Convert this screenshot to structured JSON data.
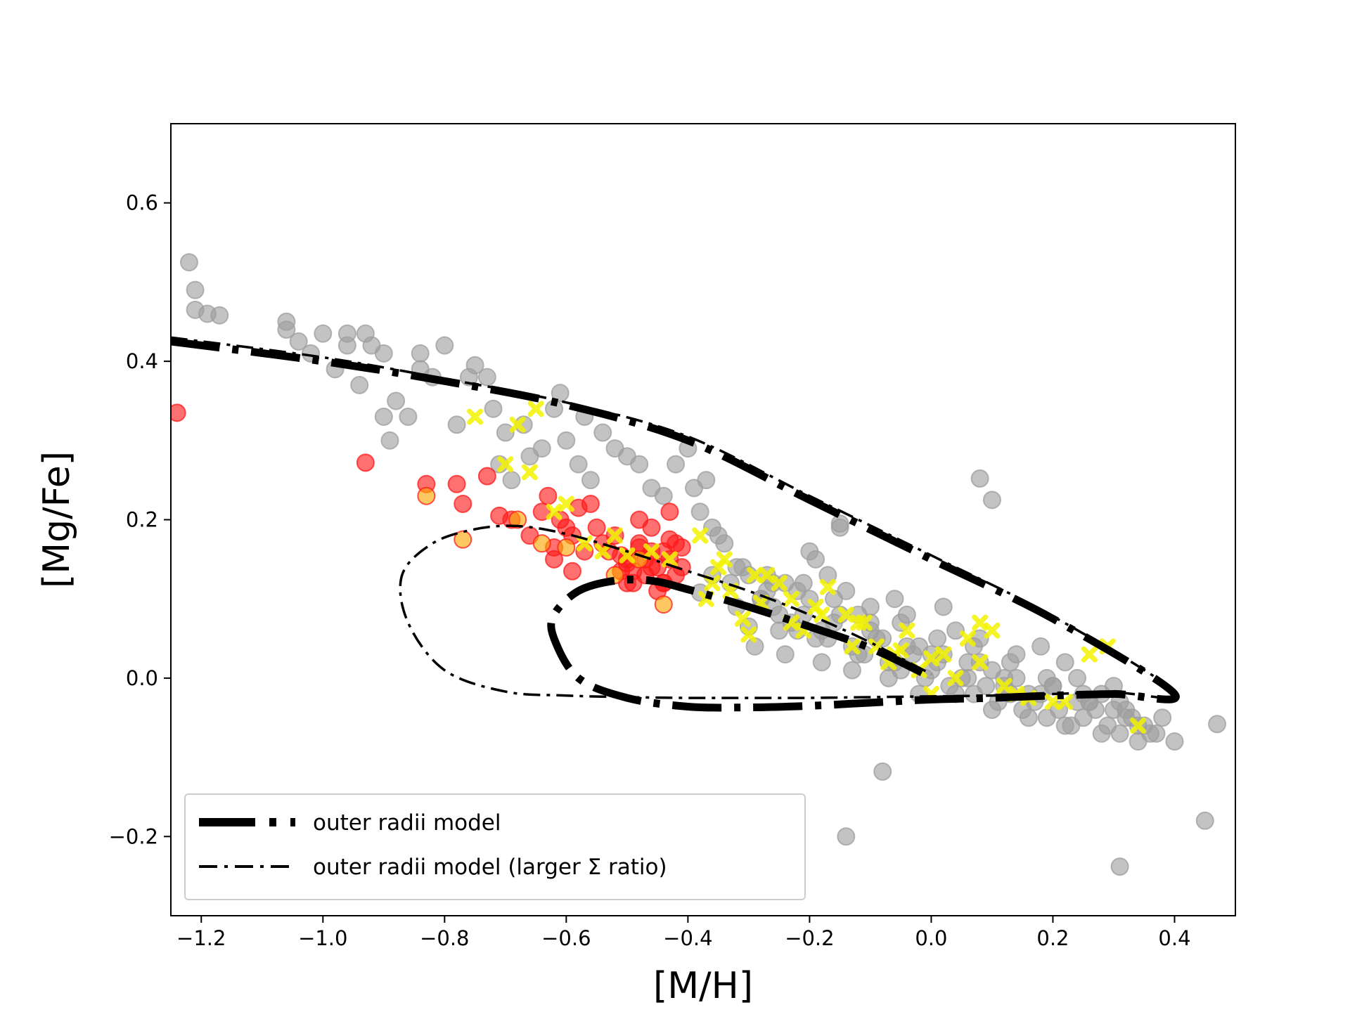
{
  "chart_data": {
    "type": "scatter",
    "xlabel": "[M/H]",
    "ylabel": "[Mg/Fe]",
    "xlim": [
      -1.25,
      0.5
    ],
    "ylim": [
      -0.3,
      0.7
    ],
    "xticks": [
      -1.2,
      -1.0,
      -0.8,
      -0.6,
      -0.4,
      -0.2,
      0.0,
      0.2,
      0.4
    ],
    "xtick_labels": [
      "−1.2",
      "−1.0",
      "−0.8",
      "−0.6",
      "−0.4",
      "−0.2",
      "0.0",
      "0.2",
      "0.4"
    ],
    "yticks": [
      -0.2,
      0.0,
      0.2,
      0.4,
      0.6
    ],
    "ytick_labels": [
      "−0.2",
      "0.0",
      "0.2",
      "0.4",
      "0.6"
    ],
    "legend_position": "lower-left",
    "colors": {
      "gray": "#9e9e9e",
      "red": "#ff1a1a",
      "orange": "#ffa500",
      "yellow": "#f2f200",
      "line": "#000000"
    },
    "series": [
      {
        "name": "galaxies (gray)",
        "kind": "scatter",
        "marker": "circle",
        "x": [
          -1.22,
          -1.21,
          -1.21,
          -1.19,
          -1.17,
          -1.06,
          -1.06,
          -1.04,
          -1.02,
          -1.0,
          -0.98,
          -0.96,
          -0.96,
          -0.94,
          -0.93,
          -0.92,
          -0.9,
          -0.9,
          -0.89,
          -0.88,
          -0.86,
          -0.84,
          -0.84,
          -0.82,
          -0.8,
          -0.78,
          -0.76,
          -0.75,
          -0.73,
          -0.72,
          -0.71,
          -0.7,
          -0.69,
          -0.67,
          -0.66,
          -0.64,
          -0.62,
          -0.61,
          -0.6,
          -0.58,
          -0.57,
          -0.56,
          -0.54,
          -0.52,
          -0.5,
          -0.48,
          -0.46,
          -0.44,
          -0.42,
          -0.4,
          -0.39,
          -0.38,
          -0.37,
          -0.36,
          -0.35,
          -0.34,
          -0.32,
          -0.3,
          -0.28,
          -0.26,
          -0.24,
          -0.22,
          -0.2,
          -0.19,
          -0.17,
          -0.15,
          -0.14,
          -0.12,
          -0.1,
          -0.08,
          -0.06,
          -0.04,
          -0.02,
          0.0,
          0.02,
          0.04,
          0.06,
          0.08,
          0.1,
          0.12,
          0.14,
          0.16,
          0.18,
          0.2,
          0.22,
          0.24,
          0.26,
          0.28,
          0.3,
          0.32,
          0.34,
          0.36,
          0.38,
          0.4,
          0.45,
          0.47,
          -0.14,
          0.31,
          -0.08,
          0.08,
          0.1,
          -0.15,
          -0.38,
          -0.36,
          -0.33,
          -0.32,
          -0.3,
          -0.28,
          -0.27,
          -0.25,
          -0.23,
          -0.21,
          -0.19,
          -0.18,
          -0.16,
          -0.13,
          -0.11,
          -0.09,
          -0.07,
          -0.05,
          -0.03,
          -0.01,
          0.01,
          0.03,
          0.05,
          0.07,
          0.09,
          0.11,
          0.13,
          0.15,
          0.17,
          0.19,
          0.21,
          0.23,
          0.25,
          0.27,
          0.29,
          0.31,
          0.33,
          0.35,
          0.37,
          -0.25,
          -0.22,
          -0.17,
          -0.12,
          -0.06,
          0.0,
          0.06,
          0.12,
          0.18,
          0.24,
          0.3,
          -0.26,
          -0.2,
          -0.15,
          -0.1,
          -0.04,
          0.02,
          0.08,
          0.14,
          0.2,
          0.26,
          0.32,
          -0.29,
          -0.24,
          -0.18,
          -0.13,
          -0.07,
          -0.02,
          0.04,
          0.1,
          0.16,
          0.22,
          0.28,
          0.34,
          -0.31,
          -0.27,
          -0.21,
          -0.16,
          -0.1,
          -0.05,
          0.01,
          0.07,
          0.13,
          0.19,
          0.25,
          0.31
        ],
        "y": [
          0.525,
          0.49,
          0.465,
          0.46,
          0.458,
          0.45,
          0.44,
          0.425,
          0.41,
          0.435,
          0.39,
          0.435,
          0.42,
          0.37,
          0.435,
          0.42,
          0.41,
          0.33,
          0.3,
          0.35,
          0.33,
          0.41,
          0.39,
          0.38,
          0.42,
          0.32,
          0.38,
          0.395,
          0.38,
          0.34,
          0.27,
          0.31,
          0.25,
          0.32,
          0.28,
          0.29,
          0.34,
          0.36,
          0.3,
          0.27,
          0.33,
          0.25,
          0.31,
          0.29,
          0.28,
          0.27,
          0.24,
          0.23,
          0.27,
          0.29,
          0.24,
          0.21,
          0.25,
          0.19,
          0.18,
          0.17,
          0.14,
          0.13,
          0.1,
          0.09,
          0.12,
          0.11,
          0.16,
          0.15,
          0.13,
          0.19,
          0.11,
          0.08,
          0.07,
          0.05,
          0.1,
          0.08,
          0.04,
          0.03,
          0.09,
          0.06,
          0.02,
          0.05,
          0.01,
          0.0,
          0.03,
          -0.02,
          0.04,
          -0.01,
          0.02,
          0.0,
          -0.03,
          -0.02,
          -0.01,
          -0.04,
          -0.06,
          -0.07,
          -0.05,
          -0.08,
          -0.18,
          -0.058,
          -0.2,
          -0.238,
          -0.118,
          0.252,
          0.225,
          0.195,
          0.108,
          0.13,
          0.12,
          0.09,
          0.065,
          0.1,
          0.11,
          0.06,
          0.07,
          0.08,
          0.05,
          0.06,
          0.07,
          0.04,
          0.03,
          0.05,
          0.02,
          0.01,
          0.03,
          0.0,
          0.02,
          -0.01,
          0.0,
          -0.02,
          -0.01,
          -0.03,
          -0.02,
          -0.04,
          -0.03,
          -0.05,
          -0.04,
          -0.06,
          -0.05,
          -0.04,
          -0.06,
          -0.07,
          -0.05,
          -0.06,
          -0.07,
          0.08,
          0.06,
          0.05,
          0.03,
          0.02,
          0.01,
          0.0,
          -0.01,
          -0.02,
          -0.03,
          -0.04,
          0.12,
          0.1,
          0.08,
          0.06,
          0.04,
          0.03,
          0.02,
          0.0,
          -0.01,
          -0.03,
          -0.05,
          0.04,
          0.03,
          0.02,
          0.01,
          0.0,
          -0.02,
          -0.02,
          -0.04,
          -0.05,
          -0.06,
          -0.07,
          -0.08,
          0.14,
          0.13,
          0.12,
          0.1,
          0.09,
          0.07,
          0.05,
          0.04,
          0.02,
          0.0,
          -0.02,
          -0.03
        ]
      },
      {
        "name": "red points",
        "kind": "scatter",
        "marker": "circle",
        "x": [
          -1.24,
          -0.93,
          -0.83,
          -0.78,
          -0.77,
          -0.73,
          -0.71,
          -0.69,
          -0.66,
          -0.64,
          -0.63,
          -0.62,
          -0.62,
          -0.61,
          -0.6,
          -0.59,
          -0.58,
          -0.56,
          -0.55,
          -0.54,
          -0.53,
          -0.52,
          -0.51,
          -0.5,
          -0.49,
          -0.48,
          -0.47,
          -0.46,
          -0.45,
          -0.44,
          -0.43,
          -0.42,
          -0.41,
          -0.41,
          -0.42,
          -0.43,
          -0.44,
          -0.45,
          -0.47,
          -0.49,
          -0.51,
          -0.5,
          -0.48,
          -0.46,
          -0.44,
          -0.43,
          -0.46,
          -0.48,
          -0.5,
          -0.57,
          -0.59
        ],
        "y": [
          0.335,
          0.272,
          0.245,
          0.245,
          0.22,
          0.255,
          0.205,
          0.2,
          0.18,
          0.21,
          0.23,
          0.165,
          0.15,
          0.2,
          0.19,
          0.135,
          0.215,
          0.22,
          0.19,
          0.17,
          0.16,
          0.18,
          0.155,
          0.145,
          0.135,
          0.17,
          0.15,
          0.16,
          0.14,
          0.16,
          0.175,
          0.17,
          0.165,
          0.14,
          0.13,
          0.15,
          0.12,
          0.11,
          0.13,
          0.12,
          0.135,
          0.15,
          0.165,
          0.14,
          0.12,
          0.21,
          0.19,
          0.2,
          0.12,
          0.16,
          0.18
        ]
      },
      {
        "name": "orange points",
        "kind": "scatter",
        "marker": "circle",
        "x": [
          -0.83,
          -0.77,
          -0.68,
          -0.64,
          -0.6,
          -0.52,
          -0.48,
          -0.44
        ],
        "y": [
          0.23,
          0.175,
          0.2,
          0.17,
          0.165,
          0.13,
          0.15,
          0.093
        ]
      },
      {
        "name": "yellow crosses",
        "kind": "scatter",
        "marker": "x",
        "x": [
          -0.75,
          -0.7,
          -0.68,
          -0.66,
          -0.65,
          -0.62,
          -0.6,
          -0.57,
          -0.54,
          -0.52,
          -0.5,
          -0.46,
          -0.43,
          -0.38,
          -0.37,
          -0.35,
          -0.33,
          -0.31,
          -0.3,
          -0.28,
          -0.27,
          -0.25,
          -0.23,
          -0.21,
          -0.19,
          -0.17,
          -0.14,
          -0.13,
          -0.11,
          -0.09,
          -0.07,
          -0.05,
          -0.04,
          -0.02,
          0.0,
          0.02,
          0.04,
          0.06,
          0.08,
          0.1,
          0.12,
          0.14,
          0.16,
          0.2,
          0.22,
          0.26,
          0.29,
          0.34,
          -0.36,
          -0.34,
          -0.29,
          -0.23,
          -0.18,
          -0.12,
          -0.06,
          0.0,
          0.08
        ],
        "y": [
          0.33,
          0.27,
          0.32,
          0.26,
          0.34,
          0.21,
          0.22,
          0.17,
          0.16,
          0.18,
          0.155,
          0.16,
          0.15,
          0.18,
          0.1,
          0.14,
          0.11,
          0.075,
          0.055,
          0.095,
          0.13,
          0.12,
          0.07,
          0.06,
          0.09,
          0.115,
          0.08,
          0.04,
          0.07,
          0.04,
          0.02,
          0.035,
          0.06,
          0.01,
          0.025,
          0.03,
          0.0,
          0.05,
          0.02,
          0.06,
          -0.01,
          -0.02,
          -0.025,
          -0.03,
          -0.03,
          0.03,
          0.04,
          -0.06,
          0.12,
          0.15,
          0.13,
          0.1,
          0.08,
          0.07,
          0.03,
          -0.02,
          0.07
        ]
      },
      {
        "name": "outer radii model",
        "kind": "line",
        "style": "dashdot-thick",
        "x": [
          -1.25,
          -1.0,
          -0.8,
          -0.6,
          -0.4,
          -0.2,
          0.0,
          0.2,
          0.4,
          0.3,
          0.2,
          0.1,
          0.0,
          -0.1,
          -0.2,
          -0.3,
          -0.4,
          -0.5,
          -0.58,
          -0.62,
          -0.62,
          -0.58,
          -0.52,
          -0.46,
          -0.4,
          -0.3,
          -0.2,
          -0.1,
          -0.01
        ],
        "y": [
          0.425,
          0.4,
          0.375,
          0.345,
          0.3,
          0.225,
          0.15,
          0.075,
          -0.02,
          -0.02,
          -0.022,
          -0.025,
          -0.027,
          -0.031,
          -0.035,
          -0.037,
          -0.036,
          -0.025,
          0.0,
          0.05,
          0.08,
          0.11,
          0.123,
          0.123,
          0.112,
          0.09,
          0.065,
          0.038,
          0.005
        ]
      },
      {
        "name": "outer radii model (larger Σ ratio)",
        "kind": "line",
        "style": "dashdot-thin",
        "x": [
          -1.25,
          -1.0,
          -0.8,
          -0.6,
          -0.4,
          -0.2,
          0.0,
          0.2,
          0.4,
          0.3,
          0.2,
          0.1,
          0.0,
          -0.1,
          -0.2,
          -0.3,
          -0.4,
          -0.5,
          -0.6,
          -0.7,
          -0.8,
          -0.86,
          -0.87,
          -0.82,
          -0.75,
          -0.68,
          -0.6,
          -0.5,
          -0.4,
          -0.3,
          -0.2,
          -0.1,
          0.0
        ],
        "y": [
          0.43,
          0.405,
          0.378,
          0.348,
          0.305,
          0.23,
          0.155,
          0.078,
          -0.018,
          -0.018,
          -0.02,
          -0.022,
          -0.023,
          -0.024,
          -0.025,
          -0.025,
          -0.025,
          -0.024,
          -0.022,
          -0.017,
          0.01,
          0.07,
          0.13,
          0.17,
          0.188,
          0.192,
          0.182,
          0.16,
          0.135,
          0.11,
          0.08,
          0.045,
          0.005
        ]
      }
    ]
  }
}
